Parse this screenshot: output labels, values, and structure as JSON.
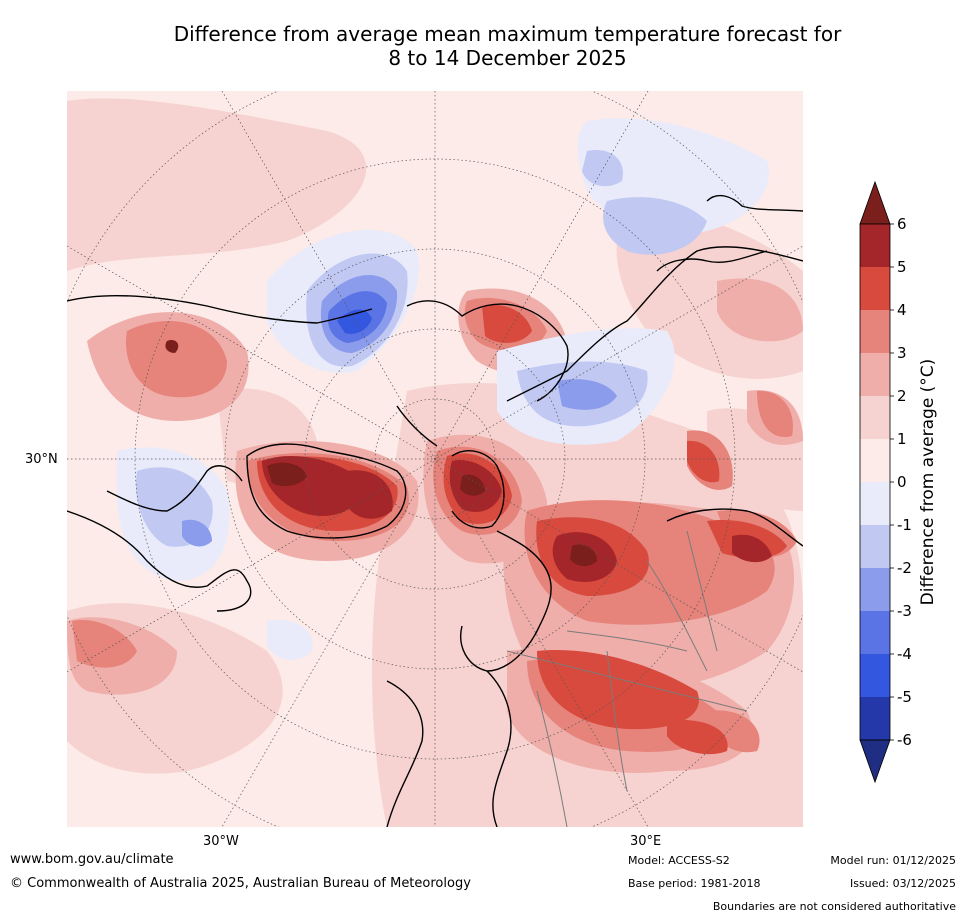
{
  "title": {
    "line1": "Difference from average mean maximum temperature forecast for",
    "line2": "8 to 14 December 2025"
  },
  "map": {
    "lat_label_left": "30°N",
    "lon_label_left": "30°W",
    "lon_label_right": "30°E"
  },
  "colorbar": {
    "label": "Difference from average (°C)",
    "ticks": [
      "6",
      "5",
      "4",
      "3",
      "2",
      "1",
      "0",
      "-1",
      "-2",
      "-3",
      "-4",
      "-5",
      "-6"
    ],
    "colors_top_to_bottom": [
      "#a5262a",
      "#d84a3e",
      "#e6837a",
      "#efaeaa",
      "#f6d3d0",
      "#fcebe8",
      "#e9ebfb",
      "#c1c9f3",
      "#8b9cec",
      "#5b74e5",
      "#3457e0",
      "#2438a9"
    ],
    "over_color": "#7b1f1c",
    "under_color": "#1f2d82"
  },
  "footer": {
    "url": "www.bom.gov.au/climate",
    "copyright": "© Commonwealth of Australia 2025, Australian Bureau of Meteorology",
    "model": "Model: ACCESS-S2",
    "base_period": "Base period: 1981-2018",
    "model_run": "Model run: 01/12/2025",
    "issued": "Issued: 03/12/2025",
    "disclaimer": "Boundaries are not considered authoritative"
  }
}
